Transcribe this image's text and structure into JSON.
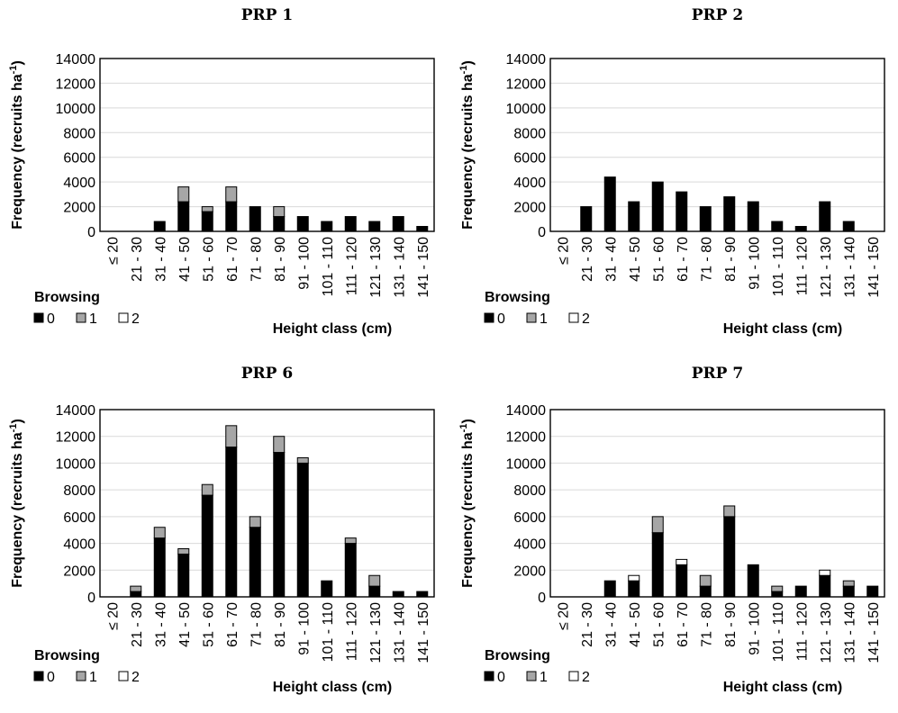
{
  "chart_data": [
    {
      "type": "bar",
      "stacked": true,
      "title": "PRP 1",
      "ylabel_text": "Frequency (recruits ha",
      "ylabel_sup": "-1",
      "ylabel_close": ")",
      "xlabel": "Height class (cm)",
      "ylim": [
        0,
        14000
      ],
      "yticks": [
        "0",
        "2000",
        "4000",
        "6000",
        "8000",
        "10000",
        "12000",
        "14000"
      ],
      "categories": [
        "≤ 20",
        "21 - 30",
        "31 - 40",
        "41 - 50",
        "51 - 60",
        "61 - 70",
        "71 - 80",
        "81 - 90",
        "91 - 100",
        "101 - 110",
        "111 - 120",
        "121 - 130",
        "131 - 140",
        "141 - 150"
      ],
      "legend_title": "Browsing",
      "series": [
        {
          "name": "0",
          "color": "#000000",
          "values": [
            0,
            0,
            800,
            2400,
            1600,
            2400,
            2000,
            1200,
            1200,
            800,
            1200,
            800,
            1200,
            400
          ]
        },
        {
          "name": "1",
          "color": "#a6a6a6",
          "values": [
            0,
            0,
            0,
            1200,
            400,
            1200,
            0,
            800,
            0,
            0,
            0,
            0,
            0,
            0
          ]
        },
        {
          "name": "2",
          "color": "#ffffff",
          "values": [
            0,
            0,
            0,
            0,
            0,
            0,
            0,
            0,
            0,
            0,
            0,
            0,
            0,
            0
          ]
        }
      ]
    },
    {
      "type": "bar",
      "stacked": true,
      "title": "PRP 2",
      "ylabel_text": "Frequency (recruits ha",
      "ylabel_sup": "-1",
      "ylabel_close": ")",
      "xlabel": "Height class (cm)",
      "ylim": [
        0,
        14000
      ],
      "yticks": [
        "0",
        "2000",
        "4000",
        "6000",
        "8000",
        "10000",
        "12000",
        "14000"
      ],
      "categories": [
        "≤ 20",
        "21 - 30",
        "31 - 40",
        "41 - 50",
        "51 - 60",
        "61 - 70",
        "71 - 80",
        "81 - 90",
        "91 - 100",
        "101 - 110",
        "111 - 120",
        "121 - 130",
        "131 - 140",
        "141 - 150"
      ],
      "legend_title": "Browsing",
      "series": [
        {
          "name": "0",
          "color": "#000000",
          "values": [
            0,
            2000,
            4400,
            2400,
            4000,
            3200,
            2000,
            2800,
            2400,
            800,
            400,
            2400,
            800,
            0
          ]
        },
        {
          "name": "1",
          "color": "#a6a6a6",
          "values": [
            0,
            0,
            0,
            0,
            0,
            0,
            0,
            0,
            0,
            0,
            0,
            0,
            0,
            0
          ]
        },
        {
          "name": "2",
          "color": "#ffffff",
          "values": [
            0,
            0,
            0,
            0,
            0,
            0,
            0,
            0,
            0,
            0,
            0,
            0,
            0,
            0
          ]
        }
      ]
    },
    {
      "type": "bar",
      "stacked": true,
      "title": "PRP 6",
      "ylabel_text": "Frequency (recruits ha",
      "ylabel_sup": "-1",
      "ylabel_close": ")",
      "xlabel": "Height class (cm)",
      "ylim": [
        0,
        14000
      ],
      "yticks": [
        "0",
        "2000",
        "4000",
        "6000",
        "8000",
        "10000",
        "12000",
        "14000"
      ],
      "categories": [
        "≤ 20",
        "21 - 30",
        "31 - 40",
        "41 - 50",
        "51 - 60",
        "61 - 70",
        "71 - 80",
        "81 - 90",
        "91 - 100",
        "101 - 110",
        "111 - 120",
        "121 - 130",
        "131 - 140",
        "141 - 150"
      ],
      "legend_title": "Browsing",
      "series": [
        {
          "name": "0",
          "color": "#000000",
          "values": [
            0,
            400,
            4400,
            3200,
            7600,
            11200,
            5200,
            10800,
            10000,
            1200,
            4000,
            800,
            400,
            400
          ]
        },
        {
          "name": "1",
          "color": "#a6a6a6",
          "values": [
            0,
            400,
            800,
            400,
            800,
            1600,
            800,
            1200,
            400,
            0,
            400,
            800,
            0,
            0
          ]
        },
        {
          "name": "2",
          "color": "#ffffff",
          "values": [
            0,
            0,
            0,
            0,
            0,
            0,
            0,
            0,
            0,
            0,
            0,
            0,
            0,
            0
          ]
        }
      ]
    },
    {
      "type": "bar",
      "stacked": true,
      "title": "PRP  7",
      "ylabel_text": "Frequency (recruits ha",
      "ylabel_sup": "-1",
      "ylabel_close": ")",
      "xlabel": "Height class (cm)",
      "ylim": [
        0,
        14000
      ],
      "yticks": [
        "0",
        "2000",
        "4000",
        "6000",
        "8000",
        "10000",
        "12000",
        "14000"
      ],
      "categories": [
        "≤ 20",
        "21 - 30",
        "31 - 40",
        "41 - 50",
        "51 - 60",
        "61 - 70",
        "71 - 80",
        "81 - 90",
        "91 - 100",
        "101 - 110",
        "111 - 120",
        "121 - 130",
        "131 - 140",
        "141 - 150"
      ],
      "legend_title": "Browsing",
      "series": [
        {
          "name": "0",
          "color": "#000000",
          "values": [
            0,
            0,
            1200,
            1200,
            4800,
            2400,
            800,
            6000,
            2400,
            400,
            800,
            1600,
            800,
            800
          ]
        },
        {
          "name": "1",
          "color": "#a6a6a6",
          "values": [
            0,
            0,
            0,
            0,
            1200,
            0,
            800,
            800,
            0,
            400,
            0,
            0,
            400,
            0
          ]
        },
        {
          "name": "2",
          "color": "#ffffff",
          "values": [
            0,
            0,
            0,
            400,
            0,
            400,
            0,
            0,
            0,
            0,
            0,
            400,
            0,
            0
          ]
        }
      ]
    }
  ]
}
